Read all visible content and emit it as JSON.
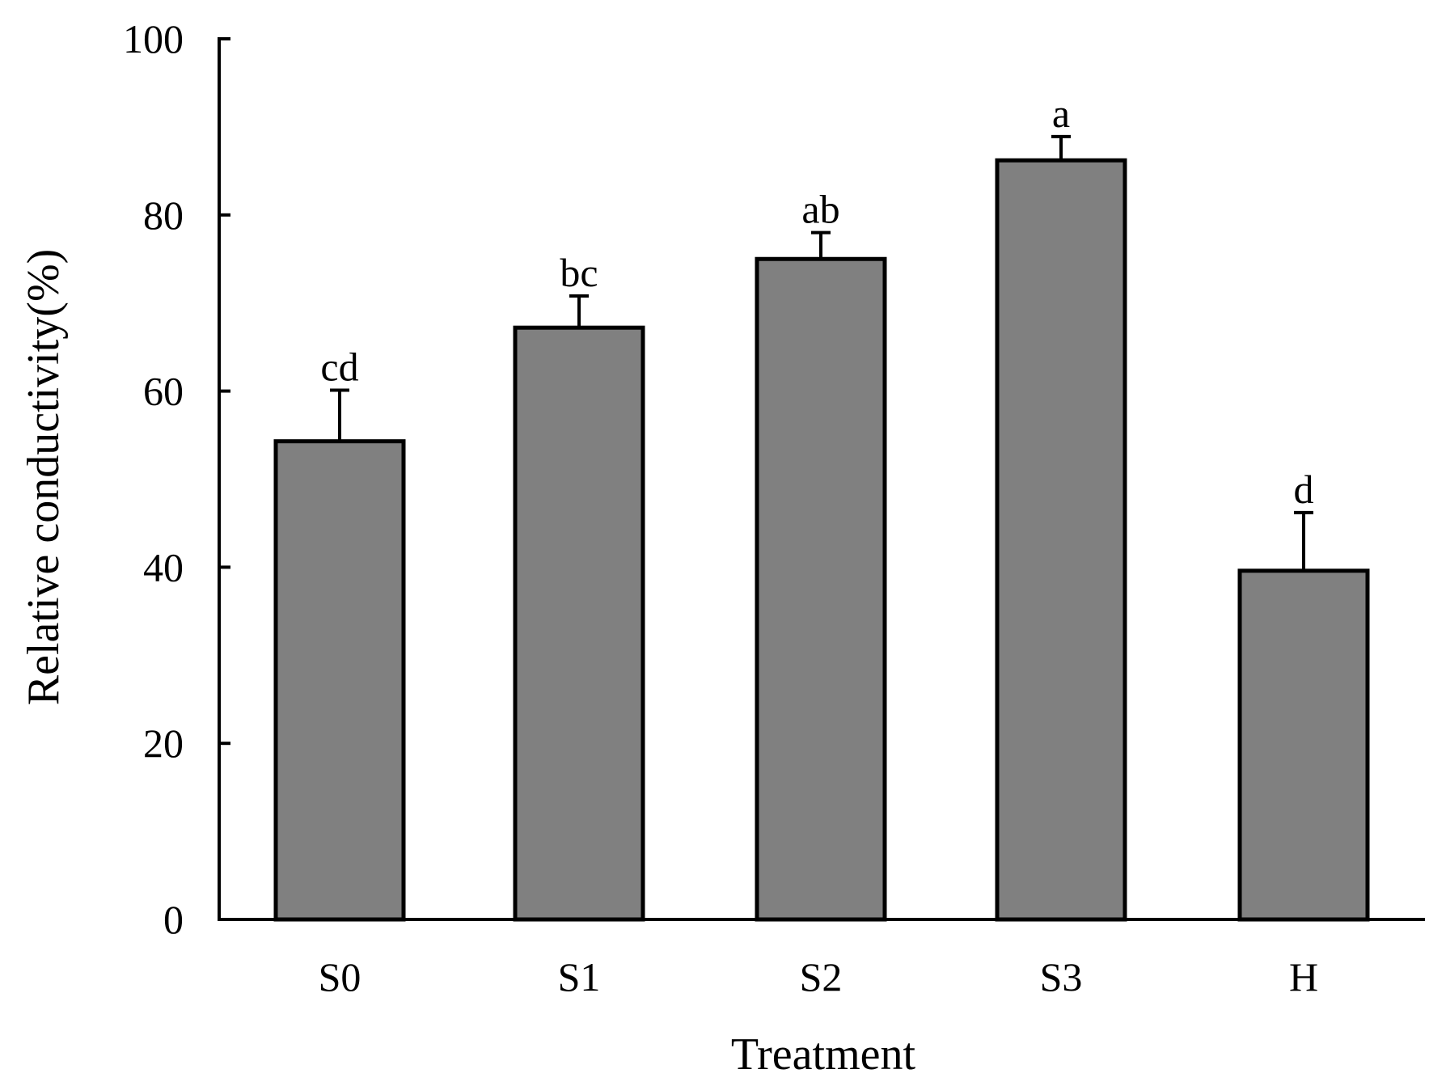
{
  "chart_data": {
    "type": "bar",
    "title": "",
    "xlabel": "Treatment",
    "ylabel": "Relative conductivity(%)",
    "ylim": [
      0,
      100
    ],
    "yticks": [
      "0",
      "20",
      "40",
      "60",
      "80",
      "100"
    ],
    "categories": [
      "S0",
      "S1",
      "S2",
      "S3",
      "H"
    ],
    "values": [
      54.3,
      67.2,
      75.0,
      86.2,
      39.6
    ],
    "error_upper": [
      5.8,
      3.6,
      3.0,
      2.7,
      6.6
    ],
    "significance_letters": [
      "cd",
      "bc",
      "ab",
      "a",
      "d"
    ],
    "bar_color": "#808080",
    "grid": false
  }
}
